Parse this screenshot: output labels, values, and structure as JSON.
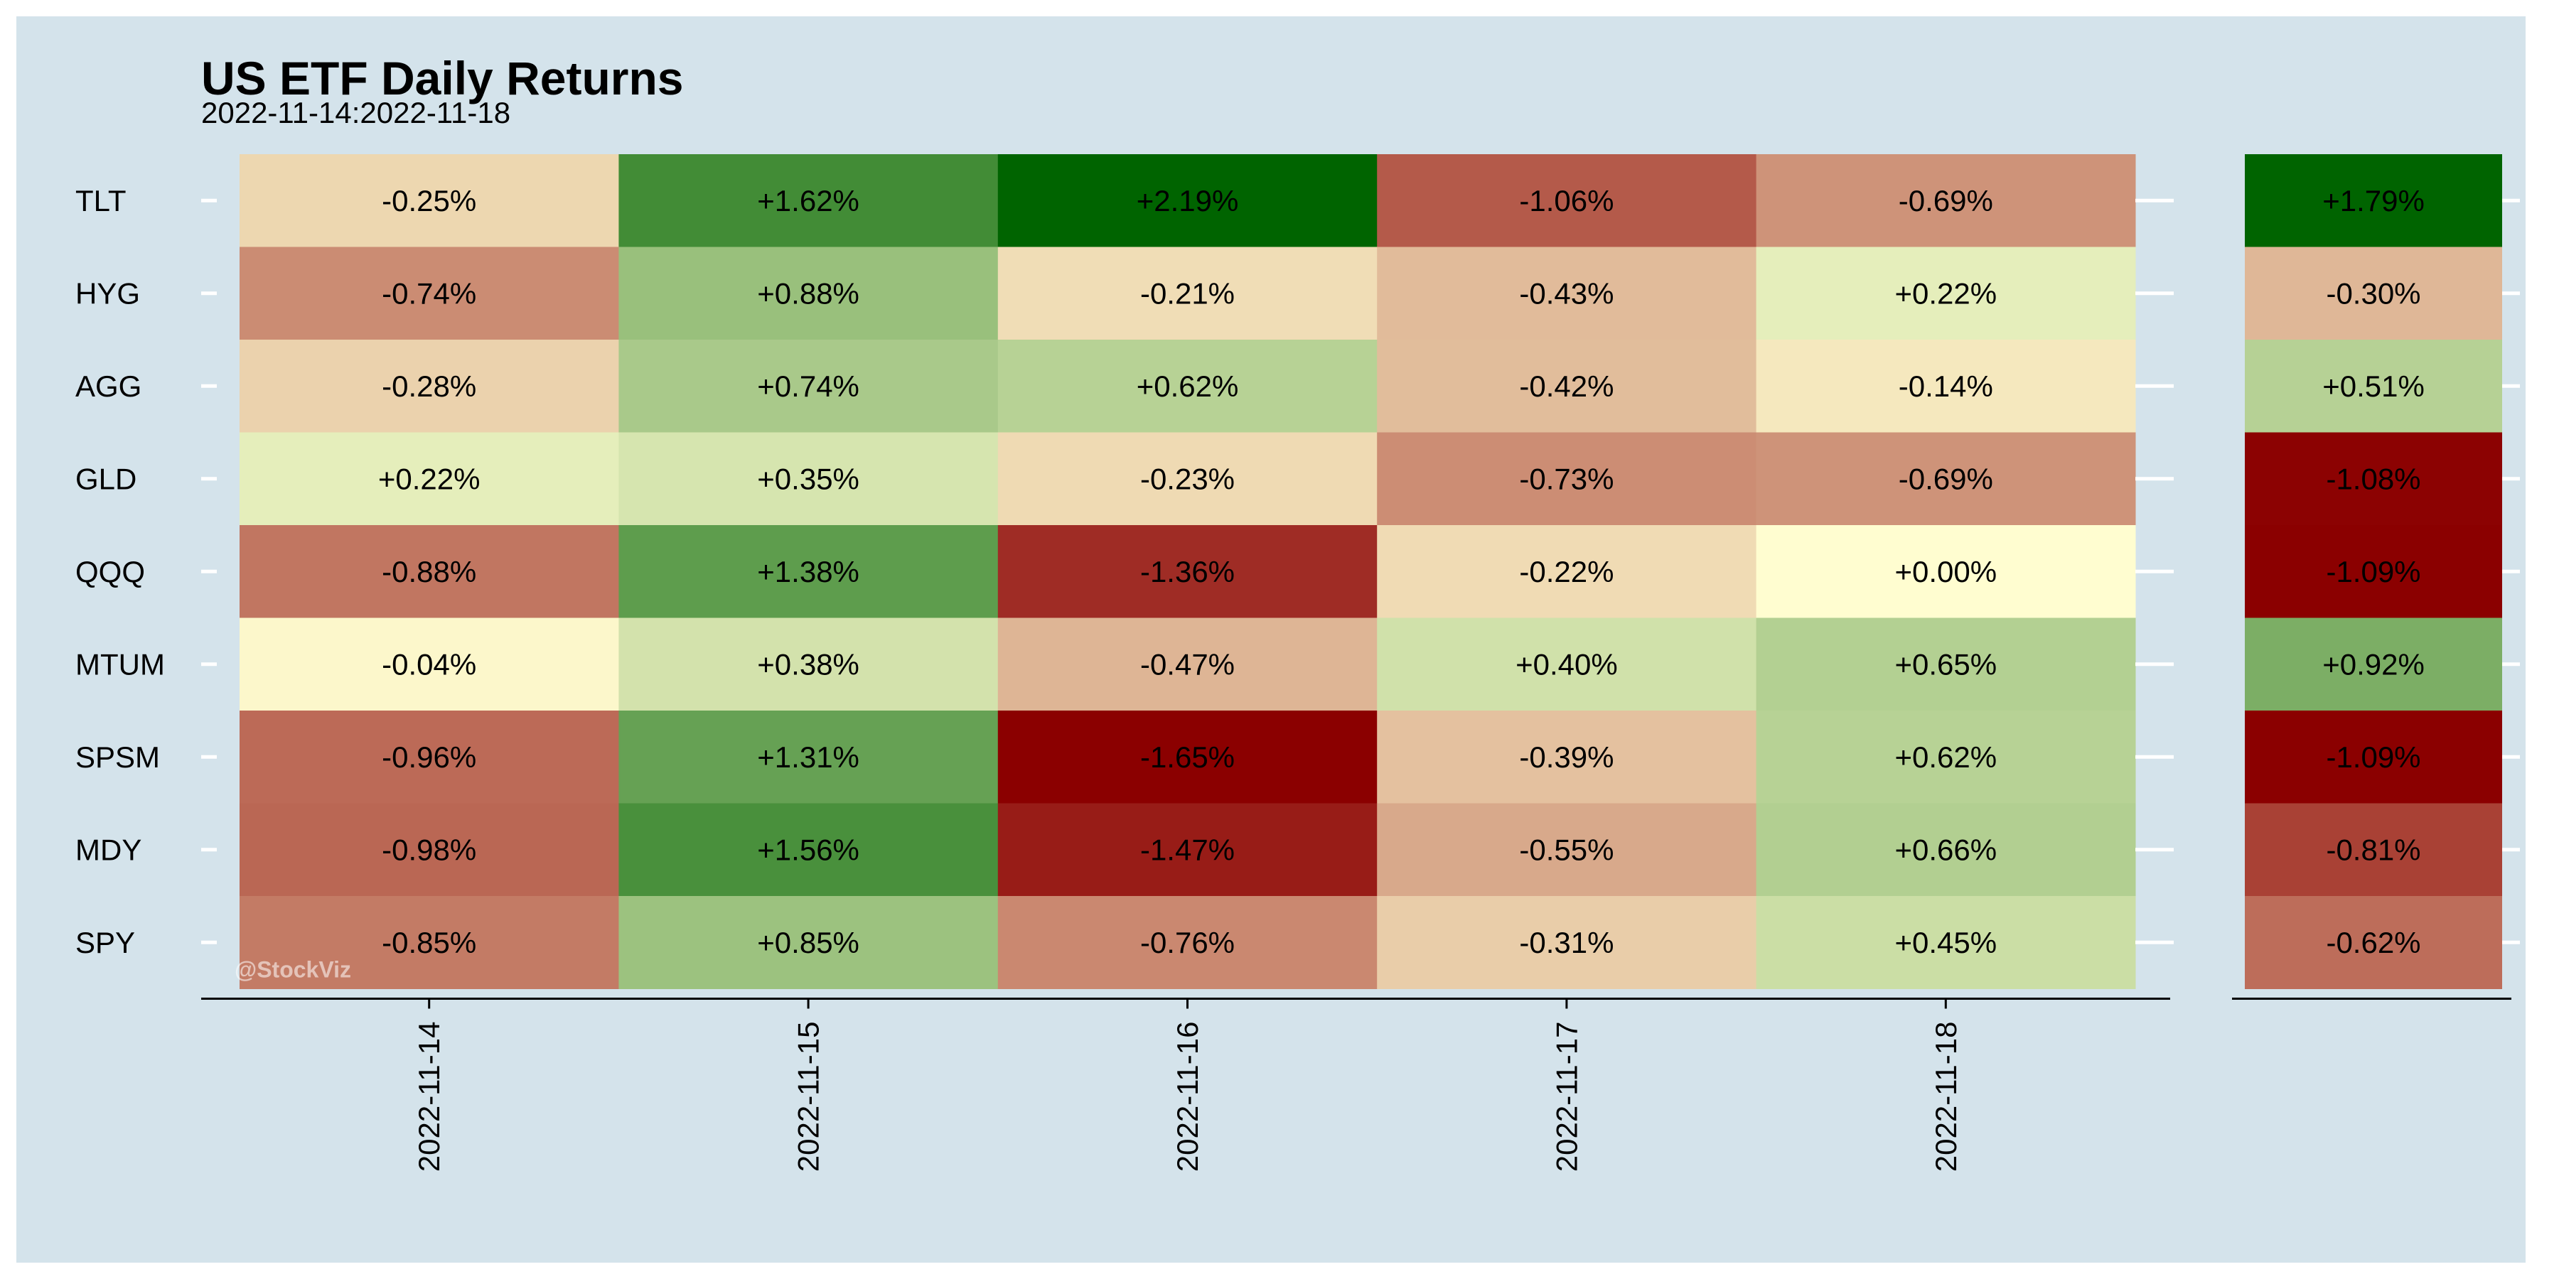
{
  "title": "US ETF Daily Returns",
  "subtitle": "2022-11-14:2022-11-18",
  "watermark": "@StockViz",
  "chart_data": {
    "type": "heatmap",
    "rows": [
      "TLT",
      "HYG",
      "AGG",
      "GLD",
      "QQQ",
      "MTUM",
      "SPSM",
      "MDY",
      "SPY"
    ],
    "columns": [
      "2022-11-14",
      "2022-11-15",
      "2022-11-16",
      "2022-11-17",
      "2022-11-18"
    ],
    "values": [
      [
        -0.25,
        1.62,
        2.19,
        -1.06,
        -0.69
      ],
      [
        -0.74,
        0.88,
        -0.21,
        -0.43,
        0.22
      ],
      [
        -0.28,
        0.74,
        0.62,
        -0.42,
        -0.14
      ],
      [
        0.22,
        0.35,
        -0.23,
        -0.73,
        -0.69
      ],
      [
        -0.88,
        1.38,
        -1.36,
        -0.22,
        0.0
      ],
      [
        -0.04,
        0.38,
        -0.47,
        0.4,
        0.65
      ],
      [
        -0.96,
        1.31,
        -1.65,
        -0.39,
        0.62
      ],
      [
        -0.98,
        1.56,
        -1.47,
        -0.55,
        0.66
      ],
      [
        -0.85,
        0.85,
        -0.76,
        -0.31,
        0.45
      ]
    ],
    "value_labels": [
      [
        "-0.25%",
        "+1.62%",
        "+2.19%",
        "-1.06%",
        "-0.69%"
      ],
      [
        "-0.74%",
        "+0.88%",
        "-0.21%",
        "-0.43%",
        "+0.22%"
      ],
      [
        "-0.28%",
        "+0.74%",
        "+0.62%",
        "-0.42%",
        "-0.14%"
      ],
      [
        "+0.22%",
        "+0.35%",
        "-0.23%",
        "-0.73%",
        "-0.69%"
      ],
      [
        "-0.88%",
        "+1.38%",
        "-1.36%",
        "-0.22%",
        "+0.00%"
      ],
      [
        "-0.04%",
        "+0.38%",
        "-0.47%",
        "+0.40%",
        "+0.65%"
      ],
      [
        "-0.96%",
        "+1.31%",
        "-1.65%",
        "-0.39%",
        "+0.62%"
      ],
      [
        "-0.98%",
        "+1.56%",
        "-1.47%",
        "-0.55%",
        "+0.66%"
      ],
      [
        "-0.85%",
        "+0.85%",
        "-0.76%",
        "-0.31%",
        "+0.45%"
      ]
    ],
    "totals": [
      1.79,
      -0.3,
      0.51,
      -1.08,
      -1.09,
      0.92,
      -1.09,
      -0.81,
      -0.62
    ],
    "total_labels": [
      "+1.79%",
      "-0.30%",
      "+0.51%",
      "-1.08%",
      "-1.09%",
      "+0.92%",
      "-1.09%",
      "-0.81%",
      "-0.62%"
    ],
    "color_scale": {
      "negative": "#8b0000",
      "neutral": "#fffdd0",
      "positive": "#006400"
    },
    "grid": false
  }
}
